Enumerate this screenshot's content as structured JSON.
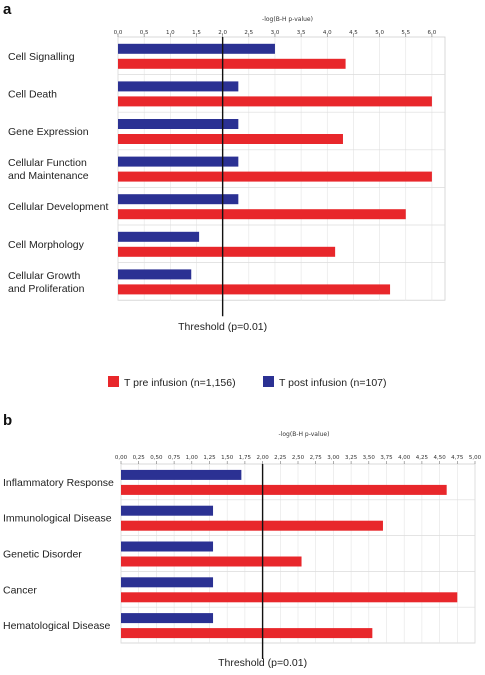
{
  "colors": {
    "pre": "#e8272b",
    "post": "#2b3193",
    "threshold": "#111111"
  },
  "legend": {
    "pre_label": "T pre infusion (n=1,156)",
    "post_label": "T post infusion (n=107)"
  },
  "chart_data": [
    {
      "type": "bar",
      "orientation": "horizontal",
      "panel": "a",
      "xlabel": "-log(B-H p-value)",
      "xlim": [
        0,
        6.25
      ],
      "ticks": [
        "0,0",
        "0,5",
        "1,0",
        "1,5",
        "2,0",
        "2,5",
        "3,0",
        "3,5",
        "4,0",
        "4,5",
        "5,0",
        "5,5",
        "6,0"
      ],
      "threshold": 2.0,
      "threshold_label": "Threshold (p=0.01)",
      "categories": [
        [
          "Cell Signalling"
        ],
        [
          "Cell Death"
        ],
        [
          "Gene Expression"
        ],
        [
          "Cellular Function",
          "and Maintenance"
        ],
        [
          "Cellular Development"
        ],
        [
          "Cell Morphology"
        ],
        [
          "Cellular Growth",
          "and Proliferation"
        ]
      ],
      "series": [
        {
          "key": "post",
          "values": [
            3.0,
            2.3,
            2.3,
            2.3,
            2.3,
            1.55,
            1.4
          ]
        },
        {
          "key": "pre",
          "values": [
            4.35,
            6.0,
            4.3,
            6.0,
            5.5,
            4.15,
            5.2
          ]
        }
      ]
    },
    {
      "type": "bar",
      "orientation": "horizontal",
      "panel": "b",
      "xlabel": "-log(B-H p-value)",
      "xlim": [
        0,
        5.0
      ],
      "ticks": [
        "0,00",
        "0,25",
        "0,50",
        "0,75",
        "1,00",
        "1,25",
        "1,50",
        "1,75",
        "2,00",
        "2,25",
        "2,50",
        "2,75",
        "3,00",
        "3,25",
        "3,50",
        "3,75",
        "4,00",
        "4,25",
        "4,50",
        "4,75",
        "5,00"
      ],
      "threshold": 2.0,
      "threshold_label": "Threshold (p=0.01)",
      "categories": [
        [
          "Inflammatory Response"
        ],
        [
          "Immunological Disease"
        ],
        [
          "Genetic Disorder"
        ],
        [
          "Cancer"
        ],
        [
          "Hematological Disease"
        ]
      ],
      "series": [
        {
          "key": "post",
          "values": [
            1.7,
            1.3,
            1.3,
            1.3,
            1.3
          ]
        },
        {
          "key": "pre",
          "values": [
            4.6,
            3.7,
            2.55,
            4.75,
            3.55
          ]
        }
      ]
    }
  ]
}
